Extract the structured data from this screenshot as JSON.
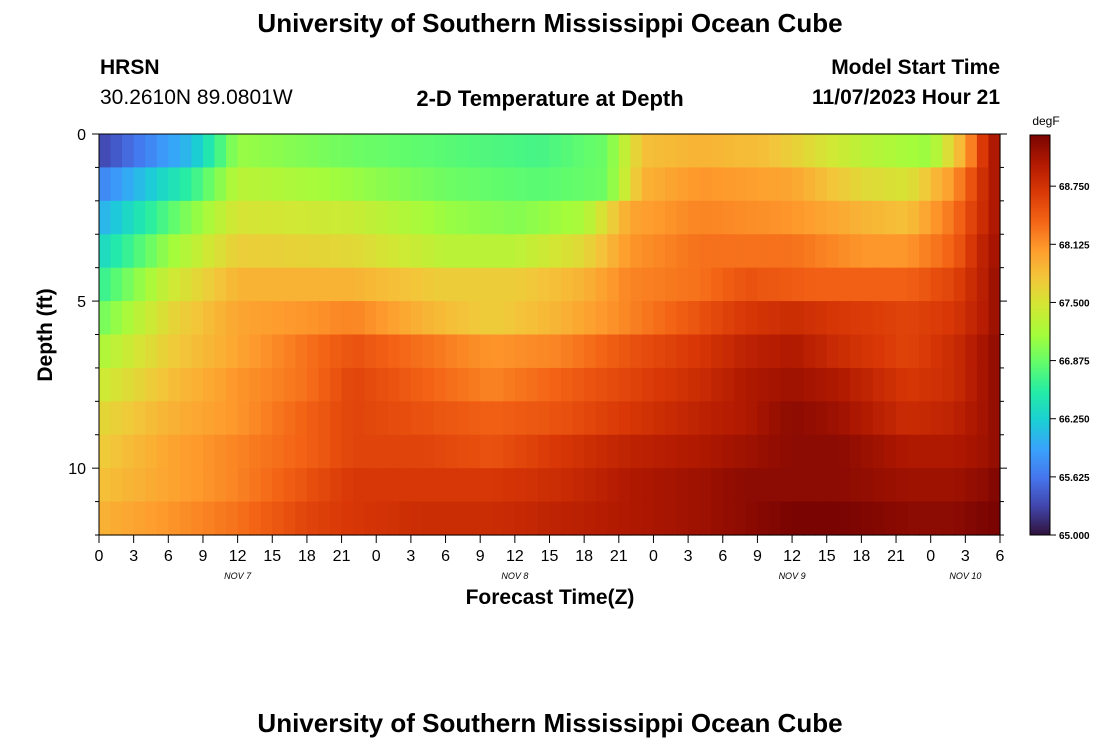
{
  "header": {
    "title": "University of Southern Mississippi Ocean Cube",
    "station": "HRSN",
    "coords": "30.2610N  89.0801W",
    "subtitle": "2-D Temperature at Depth",
    "model_label": "Model Start Time",
    "model_time": "11/07/2023 Hour 21"
  },
  "footer": {
    "title": "University of Southern Mississippi Ocean Cube"
  },
  "chart_data": {
    "type": "heatmap",
    "title": "2-D Temperature at Depth",
    "xlabel": "Forecast Time(Z)",
    "ylabel": "Depth (ft)",
    "x_hours_range": [
      0,
      78
    ],
    "x_tick_labels": [
      "0",
      "3",
      "6",
      "9",
      "12",
      "15",
      "18",
      "21",
      "0",
      "3",
      "6",
      "9",
      "12",
      "15",
      "18",
      "21",
      "0",
      "3",
      "6",
      "9",
      "12",
      "15",
      "18",
      "21",
      "0",
      "3",
      "6"
    ],
    "day_labels": [
      {
        "label": "NOV 7",
        "hour": 12
      },
      {
        "label": "NOV 8",
        "hour": 36
      },
      {
        "label": "NOV 9",
        "hour": 60
      },
      {
        "label": "NOV 10",
        "hour": 75
      }
    ],
    "y_range": [
      0,
      12
    ],
    "y_ticks": [
      0,
      5,
      10
    ],
    "depths_ft": [
      0.5,
      1.5,
      2.5,
      3.5,
      4.5,
      5.5,
      6.5,
      7.5,
      8.5,
      9.5,
      10.5,
      11.5
    ],
    "colorbar": {
      "unit": "degF",
      "min": 65.0,
      "max": 69.3,
      "tick_labels": [
        "65.000",
        "65.625",
        "66.250",
        "66.875",
        "67.500",
        "68.125",
        "68.750"
      ],
      "colors": [
        "#30123b",
        "#4145ab",
        "#4675ed",
        "#39a2fc",
        "#1bcfd4",
        "#24eca6",
        "#61fc6c",
        "#a4fc3b",
        "#d1e834",
        "#f3c63a",
        "#fe9b2d",
        "#f36315",
        "#d93806",
        "#b11901",
        "#7a0402"
      ]
    },
    "profiles": [
      {
        "depth": 0.5,
        "points": [
          [
            0,
            65.3
          ],
          [
            8,
            66.1
          ],
          [
            12,
            67.1
          ],
          [
            22,
            66.9
          ],
          [
            30,
            66.8
          ],
          [
            38,
            66.7
          ],
          [
            44,
            66.9
          ],
          [
            47,
            67.8
          ],
          [
            52,
            67.9
          ],
          [
            58,
            67.8
          ],
          [
            66,
            67.3
          ],
          [
            72,
            67.1
          ],
          [
            75,
            68.0
          ],
          [
            77,
            68.9
          ],
          [
            78,
            69.1
          ]
        ]
      },
      {
        "depth": 1.5,
        "points": [
          [
            0,
            65.7
          ],
          [
            8,
            66.6
          ],
          [
            12,
            67.3
          ],
          [
            22,
            67.1
          ],
          [
            30,
            66.9
          ],
          [
            38,
            66.8
          ],
          [
            44,
            66.9
          ],
          [
            47,
            67.9
          ],
          [
            52,
            68.1
          ],
          [
            60,
            68.0
          ],
          [
            66,
            67.6
          ],
          [
            70,
            67.5
          ],
          [
            74,
            68.1
          ],
          [
            77,
            68.9
          ],
          [
            78,
            69.1
          ]
        ]
      },
      {
        "depth": 2.5,
        "points": [
          [
            0,
            66.0
          ],
          [
            7,
            66.9
          ],
          [
            12,
            67.5
          ],
          [
            22,
            67.4
          ],
          [
            30,
            67.1
          ],
          [
            36,
            67.0
          ],
          [
            42,
            67.2
          ],
          [
            46,
            68.0
          ],
          [
            52,
            68.2
          ],
          [
            60,
            68.1
          ],
          [
            66,
            67.9
          ],
          [
            70,
            67.8
          ],
          [
            74,
            68.3
          ],
          [
            77,
            68.9
          ],
          [
            78,
            69.1
          ]
        ]
      },
      {
        "depth": 3.5,
        "points": [
          [
            0,
            66.3
          ],
          [
            6,
            67.1
          ],
          [
            12,
            67.7
          ],
          [
            22,
            67.6
          ],
          [
            30,
            67.3
          ],
          [
            36,
            67.3
          ],
          [
            42,
            67.6
          ],
          [
            46,
            68.1
          ],
          [
            52,
            68.3
          ],
          [
            60,
            68.3
          ],
          [
            66,
            68.1
          ],
          [
            70,
            68.1
          ],
          [
            74,
            68.4
          ],
          [
            77,
            69.0
          ],
          [
            78,
            69.1
          ]
        ]
      },
      {
        "depth": 4.5,
        "points": [
          [
            0,
            66.6
          ],
          [
            6,
            67.4
          ],
          [
            12,
            67.9
          ],
          [
            22,
            67.9
          ],
          [
            30,
            67.7
          ],
          [
            36,
            67.7
          ],
          [
            42,
            67.9
          ],
          [
            46,
            68.2
          ],
          [
            52,
            68.3
          ],
          [
            56,
            68.5
          ],
          [
            62,
            68.4
          ],
          [
            66,
            68.4
          ],
          [
            70,
            68.4
          ],
          [
            74,
            68.6
          ],
          [
            77,
            69.0
          ],
          [
            78,
            69.2
          ]
        ]
      },
      {
        "depth": 5.5,
        "points": [
          [
            0,
            66.9
          ],
          [
            6,
            67.6
          ],
          [
            12,
            68.0
          ],
          [
            18,
            68.1
          ],
          [
            22,
            68.2
          ],
          [
            28,
            67.9
          ],
          [
            34,
            67.7
          ],
          [
            40,
            67.9
          ],
          [
            46,
            68.2
          ],
          [
            52,
            68.5
          ],
          [
            56,
            68.7
          ],
          [
            60,
            68.8
          ],
          [
            64,
            68.7
          ],
          [
            70,
            68.6
          ],
          [
            74,
            68.7
          ],
          [
            77,
            69.0
          ],
          [
            78,
            69.2
          ]
        ]
      },
      {
        "depth": 6.5,
        "points": [
          [
            0,
            67.2
          ],
          [
            6,
            67.7
          ],
          [
            12,
            68.0
          ],
          [
            18,
            68.3
          ],
          [
            22,
            68.5
          ],
          [
            28,
            68.3
          ],
          [
            34,
            68.1
          ],
          [
            40,
            68.2
          ],
          [
            46,
            68.5
          ],
          [
            52,
            68.7
          ],
          [
            56,
            68.9
          ],
          [
            60,
            69.0
          ],
          [
            64,
            68.8
          ],
          [
            70,
            68.6
          ],
          [
            74,
            68.8
          ],
          [
            77,
            69.1
          ],
          [
            78,
            69.2
          ]
        ]
      },
      {
        "depth": 7.5,
        "points": [
          [
            0,
            67.4
          ],
          [
            6,
            67.8
          ],
          [
            12,
            68.1
          ],
          [
            18,
            68.3
          ],
          [
            22,
            68.6
          ],
          [
            28,
            68.4
          ],
          [
            34,
            68.2
          ],
          [
            40,
            68.4
          ],
          [
            46,
            68.6
          ],
          [
            52,
            68.8
          ],
          [
            56,
            69.0
          ],
          [
            60,
            69.1
          ],
          [
            64,
            69.0
          ],
          [
            70,
            68.7
          ],
          [
            74,
            68.8
          ],
          [
            77,
            69.1
          ],
          [
            78,
            69.2
          ]
        ]
      },
      {
        "depth": 8.5,
        "points": [
          [
            0,
            67.6
          ],
          [
            6,
            67.9
          ],
          [
            12,
            68.1
          ],
          [
            18,
            68.4
          ],
          [
            22,
            68.6
          ],
          [
            28,
            68.5
          ],
          [
            34,
            68.4
          ],
          [
            40,
            68.5
          ],
          [
            46,
            68.7
          ],
          [
            52,
            68.9
          ],
          [
            56,
            69.0
          ],
          [
            60,
            69.2
          ],
          [
            64,
            69.1
          ],
          [
            70,
            68.8
          ],
          [
            74,
            68.9
          ],
          [
            77,
            69.1
          ],
          [
            78,
            69.2
          ]
        ]
      },
      {
        "depth": 9.5,
        "points": [
          [
            0,
            67.7
          ],
          [
            6,
            68.0
          ],
          [
            12,
            68.2
          ],
          [
            18,
            68.4
          ],
          [
            22,
            68.6
          ],
          [
            28,
            68.6
          ],
          [
            34,
            68.5
          ],
          [
            40,
            68.7
          ],
          [
            46,
            68.9
          ],
          [
            52,
            69.0
          ],
          [
            56,
            69.1
          ],
          [
            60,
            69.2
          ],
          [
            64,
            69.2
          ],
          [
            70,
            69.0
          ],
          [
            74,
            69.0
          ],
          [
            77,
            69.1
          ],
          [
            78,
            69.2
          ]
        ]
      },
      {
        "depth": 10.5,
        "points": [
          [
            0,
            67.8
          ],
          [
            6,
            68.0
          ],
          [
            12,
            68.2
          ],
          [
            18,
            68.5
          ],
          [
            22,
            68.7
          ],
          [
            28,
            68.7
          ],
          [
            34,
            68.7
          ],
          [
            40,
            68.8
          ],
          [
            46,
            69.0
          ],
          [
            52,
            69.1
          ],
          [
            56,
            69.2
          ],
          [
            60,
            69.2
          ],
          [
            64,
            69.2
          ],
          [
            70,
            69.1
          ],
          [
            74,
            69.1
          ],
          [
            77,
            69.2
          ],
          [
            78,
            69.3
          ]
        ]
      },
      {
        "depth": 11.5,
        "points": [
          [
            0,
            67.9
          ],
          [
            6,
            68.1
          ],
          [
            12,
            68.3
          ],
          [
            18,
            68.6
          ],
          [
            22,
            68.7
          ],
          [
            28,
            68.8
          ],
          [
            34,
            68.8
          ],
          [
            40,
            68.9
          ],
          [
            46,
            69.0
          ],
          [
            52,
            69.1
          ],
          [
            56,
            69.2
          ],
          [
            60,
            69.3
          ],
          [
            64,
            69.3
          ],
          [
            70,
            69.2
          ],
          [
            74,
            69.2
          ],
          [
            77,
            69.3
          ],
          [
            78,
            69.3
          ]
        ]
      }
    ]
  }
}
